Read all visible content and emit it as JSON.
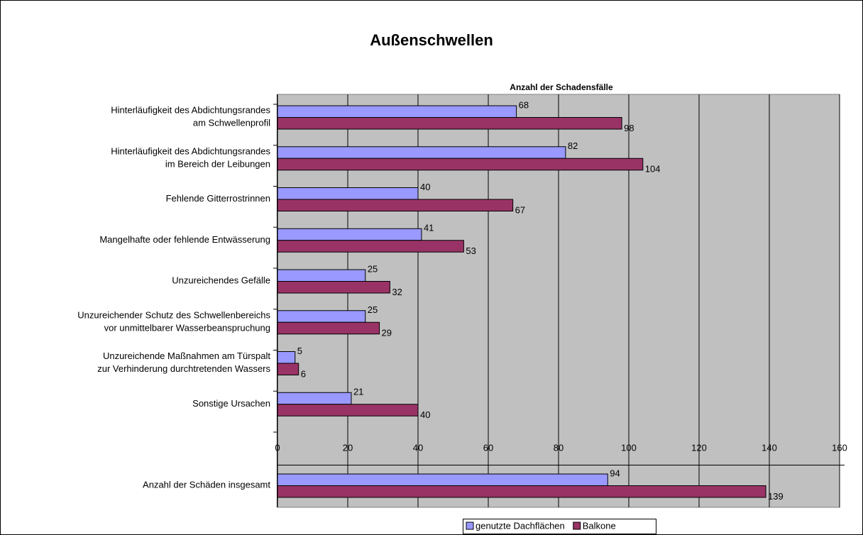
{
  "chart_data": [
    {
      "type": "bar",
      "title": "Außenschwellen",
      "x_label": "Anzahl der Schadensfälle",
      "categories": [
        "Hinterläufigkeit des Abdichtungsrandes\nam Schwellenprofil",
        "Hinterläufigkeit des Abdichtungsrandes\nim Bereich der Leibungen",
        "Fehlende Gitterrostrinnen",
        "Mangelhafte oder fehlende Entwässerung",
        "Unzureichendes Gefälle",
        "Unzureichender Schutz des Schwellenbereichs\nvor unmittelbarer Wasserbeanspruchung",
        "Unzureichende Maßnahmen am Türspalt\nzur Verhinderung durchtretenden Wassers",
        "Sonstige Ursachen"
      ],
      "series": [
        {
          "name": "genutzte Dachflächen",
          "color": "#9999ff",
          "values": [
            68,
            82,
            40,
            41,
            25,
            25,
            5,
            21
          ]
        },
        {
          "name": "Balkone",
          "color": "#993366",
          "values": [
            98,
            104,
            67,
            53,
            32,
            29,
            6,
            40
          ]
        }
      ],
      "xlim": [
        0,
        160
      ],
      "xticks": [
        0,
        20,
        40,
        60,
        80,
        100,
        120,
        140,
        160
      ],
      "grid": true
    },
    {
      "type": "bar",
      "categories": [
        "Anzahl der Schäden insgesamt"
      ],
      "series": [
        {
          "color": "#9999ff",
          "values": [
            94
          ]
        },
        {
          "color": "#993366",
          "values": [
            139
          ]
        }
      ],
      "xlim": [
        0,
        160
      ],
      "xticks": [
        0,
        20,
        40,
        60,
        80,
        100,
        120,
        140,
        160
      ],
      "grid": true
    }
  ]
}
